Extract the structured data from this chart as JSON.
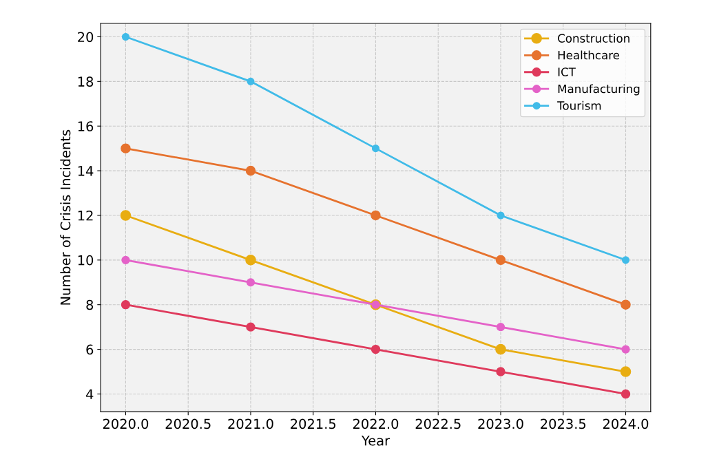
{
  "chart_data": {
    "type": "line",
    "xlabel": "Year",
    "ylabel": "Number of Crisis Incidents",
    "x": [
      2020,
      2021,
      2022,
      2023,
      2024
    ],
    "series": [
      {
        "name": "Construction",
        "color": "#e8ad12",
        "values": [
          12,
          10,
          8,
          6,
          5
        ]
      },
      {
        "name": "Healthcare",
        "color": "#e6722e",
        "values": [
          15,
          14,
          12,
          10,
          8
        ]
      },
      {
        "name": "ICT",
        "color": "#df3a5c",
        "values": [
          8,
          7,
          6,
          5,
          4
        ]
      },
      {
        "name": "Manufacturing",
        "color": "#e462c8",
        "values": [
          10,
          9,
          8,
          7,
          6
        ]
      },
      {
        "name": "Tourism",
        "color": "#40bbe8",
        "values": [
          20,
          18,
          15,
          12,
          10
        ]
      }
    ],
    "xlim": [
      2019.8,
      2024.2
    ],
    "ylim": [
      3.2,
      20.6
    ],
    "xticks": [
      {
        "value": 2020,
        "label": "2020.0"
      },
      {
        "value": 2020.5,
        "label": "2020.5"
      },
      {
        "value": 2021,
        "label": "2021.0"
      },
      {
        "value": 2021.5,
        "label": "2021.5"
      },
      {
        "value": 2022,
        "label": "2022.0"
      },
      {
        "value": 2022.5,
        "label": "2022.5"
      },
      {
        "value": 2023,
        "label": "2023.0"
      },
      {
        "value": 2023.5,
        "label": "2023.5"
      },
      {
        "value": 2024,
        "label": "2024.0"
      }
    ],
    "yticks": [
      4,
      6,
      8,
      10,
      12,
      14,
      16,
      18,
      20
    ],
    "grid": true,
    "legend": "top right",
    "marker": "circle",
    "line_style": "solid"
  }
}
